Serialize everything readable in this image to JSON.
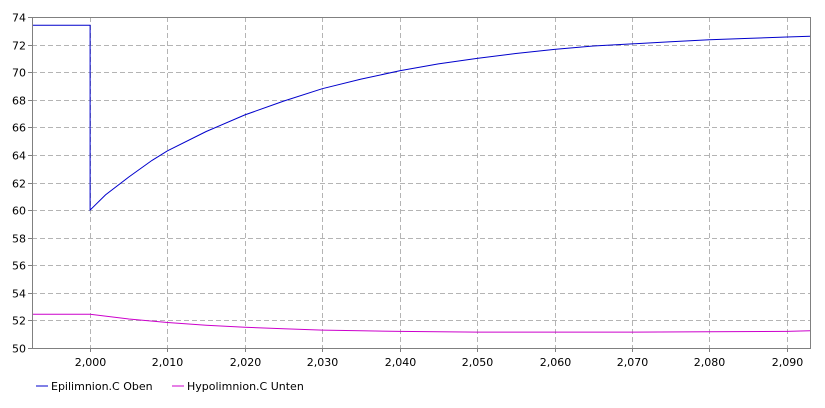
{
  "chart_data": {
    "type": "line",
    "title": "",
    "xlabel": "",
    "ylabel": "",
    "xlim": [
      1992.5,
      2093
    ],
    "ylim": [
      50,
      74
    ],
    "x_ticks": [
      2000,
      2010,
      2020,
      2030,
      2040,
      2050,
      2060,
      2070,
      2080,
      2090
    ],
    "x_tick_labels": [
      "2,000",
      "2,010",
      "2,020",
      "2,030",
      "2,040",
      "2,050",
      "2,060",
      "2,070",
      "2,080",
      "2,090"
    ],
    "y_ticks": [
      50,
      52,
      54,
      56,
      58,
      60,
      62,
      64,
      66,
      68,
      70,
      72,
      74
    ],
    "y_tick_labels": [
      "50",
      "52",
      "54",
      "56",
      "58",
      "60",
      "62",
      "64",
      "66",
      "68",
      "70",
      "72",
      "74"
    ],
    "grid": true,
    "legend_position": "bottom-left",
    "series": [
      {
        "name": "Epilimnion.C Oben",
        "color": "#0000cc",
        "points": [
          [
            1992.5,
            73.4
          ],
          [
            2000,
            73.4
          ],
          [
            2000,
            60.0
          ],
          [
            2002,
            61.1
          ],
          [
            2005,
            62.4
          ],
          [
            2008,
            63.6
          ],
          [
            2010,
            64.3
          ],
          [
            2015,
            65.7
          ],
          [
            2020,
            66.9
          ],
          [
            2025,
            67.9
          ],
          [
            2030,
            68.8
          ],
          [
            2035,
            69.5
          ],
          [
            2040,
            70.1
          ],
          [
            2045,
            70.6
          ],
          [
            2050,
            71.0
          ],
          [
            2055,
            71.35
          ],
          [
            2060,
            71.65
          ],
          [
            2065,
            71.9
          ],
          [
            2070,
            72.05
          ],
          [
            2075,
            72.2
          ],
          [
            2080,
            72.35
          ],
          [
            2085,
            72.45
          ],
          [
            2090,
            72.55
          ],
          [
            2093,
            72.6
          ]
        ]
      },
      {
        "name": "Hypolimnion.C Unten",
        "color": "#cc00cc",
        "points": [
          [
            1992.5,
            52.45
          ],
          [
            2000,
            52.45
          ],
          [
            2005,
            52.1
          ],
          [
            2010,
            51.85
          ],
          [
            2015,
            51.65
          ],
          [
            2020,
            51.5
          ],
          [
            2025,
            51.4
          ],
          [
            2030,
            51.3
          ],
          [
            2035,
            51.25
          ],
          [
            2040,
            51.2
          ],
          [
            2050,
            51.15
          ],
          [
            2060,
            51.15
          ],
          [
            2070,
            51.15
          ],
          [
            2080,
            51.18
          ],
          [
            2090,
            51.2
          ],
          [
            2093,
            51.25
          ]
        ]
      }
    ]
  }
}
